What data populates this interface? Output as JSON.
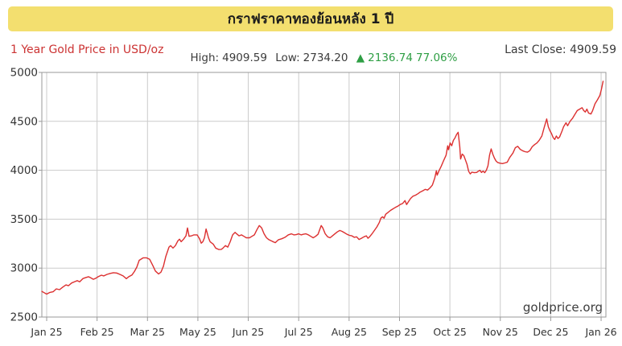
{
  "banner": {
    "title": "กราฟราคาทองย้อนหลัง 1 ปี",
    "bg_color": "#F3DF6F"
  },
  "header": {
    "series_label": "1 Year Gold Price in USD/oz",
    "series_label_color": "#CC3333",
    "high_label": "High:",
    "high_value": "4909.59",
    "low_label": "Low:",
    "low_value": "2734.20",
    "change_arrow": "▲",
    "change_value": "2136.74",
    "change_pct": "77.06%",
    "change_color": "#2E9E44",
    "last_close_label": "Last Close:",
    "last_close_value": "4909.59"
  },
  "watermark": "goldprice.org",
  "chart_data": {
    "type": "line",
    "title": "1 Year Gold Price in USD/oz",
    "ylabel": "USD/oz",
    "xlabel": "",
    "grid": true,
    "line_color": "#DC3030",
    "grid_color": "#CBCBCB",
    "border_color": "#999999",
    "axis_text_color": "#333333",
    "ylim": [
      2500,
      5000
    ],
    "y_ticks": [
      5000,
      4500,
      4000,
      3500,
      3000,
      2500
    ],
    "x_tick_labels": [
      "Jan 25",
      "Feb 25",
      "Mar 25",
      "May 25",
      "Jun 25",
      "Jul 25",
      "Aug 25",
      "Sep 25",
      "Oct 25",
      "Nov 25",
      "Dec 25",
      "Jan 26"
    ],
    "high": 4909.59,
    "low": 2734.2,
    "change_abs": 2136.74,
    "change_pct": 77.06,
    "last_close": 4909.59,
    "points_format": "[x_in_month_tick_units (0 = Jan 25 tick, 11 = Jan 26 tick), price_usd_per_oz]",
    "points": [
      [
        -0.096,
        2762
      ],
      [
        -0.048,
        2748
      ],
      [
        0,
        2734.2
      ],
      [
        0.064,
        2752
      ],
      [
        0.128,
        2758
      ],
      [
        0.192,
        2788
      ],
      [
        0.255,
        2780
      ],
      [
        0.319,
        2806
      ],
      [
        0.383,
        2828
      ],
      [
        0.431,
        2820
      ],
      [
        0.495,
        2848
      ],
      [
        0.559,
        2862
      ],
      [
        0.607,
        2872
      ],
      [
        0.655,
        2860
      ],
      [
        0.718,
        2893
      ],
      [
        0.782,
        2905
      ],
      [
        0.83,
        2912
      ],
      [
        0.878,
        2900
      ],
      [
        0.926,
        2886
      ],
      [
        0.974,
        2896
      ],
      [
        1.022,
        2912
      ],
      [
        1.086,
        2928
      ],
      [
        1.133,
        2920
      ],
      [
        1.197,
        2936
      ],
      [
        1.261,
        2946
      ],
      [
        1.325,
        2953
      ],
      [
        1.389,
        2950
      ],
      [
        1.453,
        2936
      ],
      [
        1.517,
        2920
      ],
      [
        1.581,
        2892
      ],
      [
        1.628,
        2912
      ],
      [
        1.692,
        2930
      ],
      [
        1.74,
        2965
      ],
      [
        1.788,
        3010
      ],
      [
        1.836,
        3080
      ],
      [
        1.916,
        3105
      ],
      [
        1.98,
        3105
      ],
      [
        2.044,
        3090
      ],
      [
        2.108,
        3025
      ],
      [
        2.156,
        2970
      ],
      [
        2.22,
        2940
      ],
      [
        2.268,
        2960
      ],
      [
        2.316,
        3020
      ],
      [
        2.364,
        3120
      ],
      [
        2.427,
        3215
      ],
      [
        2.459,
        3230
      ],
      [
        2.507,
        3205
      ],
      [
        2.555,
        3230
      ],
      [
        2.603,
        3280
      ],
      [
        2.635,
        3295
      ],
      [
        2.667,
        3270
      ],
      [
        2.715,
        3295
      ],
      [
        2.763,
        3330
      ],
      [
        2.794,
        3410
      ],
      [
        2.826,
        3325
      ],
      [
        2.874,
        3330
      ],
      [
        2.922,
        3340
      ],
      [
        2.986,
        3340
      ],
      [
        3.034,
        3300
      ],
      [
        3.066,
        3255
      ],
      [
        3.098,
        3270
      ],
      [
        3.13,
        3310
      ],
      [
        3.162,
        3400
      ],
      [
        3.21,
        3310
      ],
      [
        3.242,
        3270
      ],
      [
        3.305,
        3245
      ],
      [
        3.353,
        3205
      ],
      [
        3.417,
        3190
      ],
      [
        3.465,
        3192
      ],
      [
        3.497,
        3205
      ],
      [
        3.545,
        3230
      ],
      [
        3.593,
        3215
      ],
      [
        3.641,
        3270
      ],
      [
        3.689,
        3340
      ],
      [
        3.737,
        3365
      ],
      [
        3.769,
        3350
      ],
      [
        3.817,
        3330
      ],
      [
        3.865,
        3340
      ],
      [
        3.913,
        3325
      ],
      [
        3.961,
        3310
      ],
      [
        4.025,
        3310
      ],
      [
        4.073,
        3325
      ],
      [
        4.121,
        3340
      ],
      [
        4.169,
        3390
      ],
      [
        4.217,
        3435
      ],
      [
        4.265,
        3410
      ],
      [
        4.313,
        3350
      ],
      [
        4.361,
        3310
      ],
      [
        4.409,
        3290
      ],
      [
        4.472,
        3275
      ],
      [
        4.536,
        3260
      ],
      [
        4.6,
        3290
      ],
      [
        4.664,
        3300
      ],
      [
        4.728,
        3315
      ],
      [
        4.792,
        3340
      ],
      [
        4.856,
        3350
      ],
      [
        4.904,
        3340
      ],
      [
        4.952,
        3342
      ],
      [
        5.0,
        3350
      ],
      [
        5.048,
        3340
      ],
      [
        5.096,
        3346
      ],
      [
        5.144,
        3350
      ],
      [
        5.192,
        3340
      ],
      [
        5.24,
        3325
      ],
      [
        5.287,
        3310
      ],
      [
        5.335,
        3325
      ],
      [
        5.383,
        3345
      ],
      [
        5.415,
        3390
      ],
      [
        5.447,
        3435
      ],
      [
        5.479,
        3410
      ],
      [
        5.527,
        3350
      ],
      [
        5.575,
        3320
      ],
      [
        5.623,
        3310
      ],
      [
        5.671,
        3330
      ],
      [
        5.719,
        3350
      ],
      [
        5.767,
        3370
      ],
      [
        5.815,
        3385
      ],
      [
        5.863,
        3375
      ],
      [
        5.911,
        3360
      ],
      [
        5.959,
        3345
      ],
      [
        6.007,
        3335
      ],
      [
        6.055,
        3330
      ],
      [
        6.102,
        3315
      ],
      [
        6.15,
        3320
      ],
      [
        6.198,
        3293
      ],
      [
        6.246,
        3305
      ],
      [
        6.294,
        3320
      ],
      [
        6.342,
        3330
      ],
      [
        6.374,
        3305
      ],
      [
        6.406,
        3320
      ],
      [
        6.454,
        3350
      ],
      [
        6.502,
        3385
      ],
      [
        6.55,
        3420
      ],
      [
        6.598,
        3465
      ],
      [
        6.63,
        3510
      ],
      [
        6.662,
        3525
      ],
      [
        6.694,
        3510
      ],
      [
        6.726,
        3550
      ],
      [
        6.774,
        3570
      ],
      [
        6.822,
        3590
      ],
      [
        6.869,
        3605
      ],
      [
        6.917,
        3620
      ],
      [
        6.965,
        3632
      ],
      [
        7.013,
        3650
      ],
      [
        7.061,
        3660
      ],
      [
        7.109,
        3690
      ],
      [
        7.141,
        3650
      ],
      [
        7.173,
        3675
      ],
      [
        7.221,
        3712
      ],
      [
        7.269,
        3735
      ],
      [
        7.317,
        3745
      ],
      [
        7.365,
        3760
      ],
      [
        7.413,
        3778
      ],
      [
        7.461,
        3790
      ],
      [
        7.509,
        3805
      ],
      [
        7.557,
        3798
      ],
      [
        7.605,
        3820
      ],
      [
        7.652,
        3848
      ],
      [
        7.7,
        3920
      ],
      [
        7.732,
        3995
      ],
      [
        7.748,
        3950
      ],
      [
        7.78,
        3990
      ],
      [
        7.828,
        4040
      ],
      [
        7.876,
        4100
      ],
      [
        7.924,
        4155
      ],
      [
        7.956,
        4250
      ],
      [
        7.972,
        4210
      ],
      [
        8.004,
        4280
      ],
      [
        8.036,
        4250
      ],
      [
        8.068,
        4305
      ],
      [
        8.1,
        4330
      ],
      [
        8.132,
        4365
      ],
      [
        8.164,
        4388
      ],
      [
        8.196,
        4240
      ],
      [
        8.212,
        4115
      ],
      [
        8.244,
        4165
      ],
      [
        8.276,
        4150
      ],
      [
        8.308,
        4105
      ],
      [
        8.339,
        4060
      ],
      [
        8.371,
        3990
      ],
      [
        8.403,
        3962
      ],
      [
        8.435,
        3980
      ],
      [
        8.483,
        3975
      ],
      [
        8.531,
        3978
      ],
      [
        8.563,
        3990
      ],
      [
        8.595,
        4000
      ],
      [
        8.627,
        3978
      ],
      [
        8.659,
        3992
      ],
      [
        8.691,
        3975
      ],
      [
        8.723,
        4000
      ],
      [
        8.755,
        4045
      ],
      [
        8.787,
        4155
      ],
      [
        8.819,
        4218
      ],
      [
        8.851,
        4165
      ],
      [
        8.883,
        4125
      ],
      [
        8.915,
        4095
      ],
      [
        8.947,
        4080
      ],
      [
        8.994,
        4072
      ],
      [
        9.042,
        4068
      ],
      [
        9.09,
        4075
      ],
      [
        9.138,
        4082
      ],
      [
        9.186,
        4130
      ],
      [
        9.25,
        4175
      ],
      [
        9.298,
        4230
      ],
      [
        9.345,
        4245
      ],
      [
        9.393,
        4215
      ],
      [
        9.441,
        4200
      ],
      [
        9.489,
        4190
      ],
      [
        9.537,
        4185
      ],
      [
        9.585,
        4200
      ],
      [
        9.633,
        4240
      ],
      [
        9.681,
        4262
      ],
      [
        9.729,
        4280
      ],
      [
        9.777,
        4310
      ],
      [
        9.825,
        4350
      ],
      [
        9.872,
        4440
      ],
      [
        9.92,
        4525
      ],
      [
        9.952,
        4445
      ],
      [
        9.984,
        4405
      ],
      [
        10.016,
        4375
      ],
      [
        10.048,
        4335
      ],
      [
        10.08,
        4315
      ],
      [
        10.112,
        4350
      ],
      [
        10.144,
        4325
      ],
      [
        10.176,
        4340
      ],
      [
        10.224,
        4400
      ],
      [
        10.256,
        4445
      ],
      [
        10.304,
        4485
      ],
      [
        10.335,
        4455
      ],
      [
        10.383,
        4500
      ],
      [
        10.431,
        4530
      ],
      [
        10.479,
        4570
      ],
      [
        10.527,
        4610
      ],
      [
        10.575,
        4625
      ],
      [
        10.623,
        4640
      ],
      [
        10.655,
        4610
      ],
      [
        10.687,
        4595
      ],
      [
        10.719,
        4625
      ],
      [
        10.751,
        4585
      ],
      [
        10.799,
        4575
      ],
      [
        10.831,
        4610
      ],
      [
        10.879,
        4680
      ],
      [
        10.927,
        4720
      ],
      [
        10.975,
        4765
      ],
      [
        11.007,
        4830
      ],
      [
        11.039,
        4909.59
      ]
    ]
  }
}
